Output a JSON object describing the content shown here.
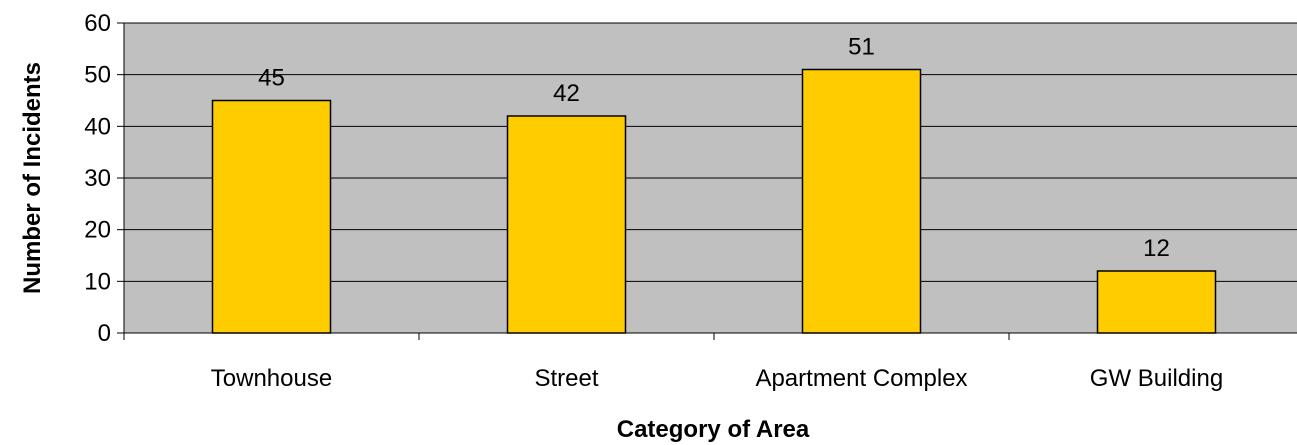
{
  "chart_data": {
    "type": "bar",
    "title": "",
    "xlabel": "Category of Area",
    "ylabel": "Number of Incidents",
    "categories": [
      "Townhouse",
      "Street",
      "Apartment Complex",
      "GW Building"
    ],
    "values": [
      45,
      42,
      51,
      12
    ],
    "data_labels": [
      "45",
      "42",
      "51",
      "12"
    ],
    "yticks": [
      "0",
      "10",
      "20",
      "30",
      "40",
      "50",
      "60"
    ],
    "ylim": [
      0,
      60
    ],
    "grid": true,
    "legend": "none",
    "colors": {
      "bar_fill": "#FFCC00",
      "bar_stroke": "#000000",
      "plot_background": "#C0C0C0",
      "gridline": "#000000"
    }
  }
}
